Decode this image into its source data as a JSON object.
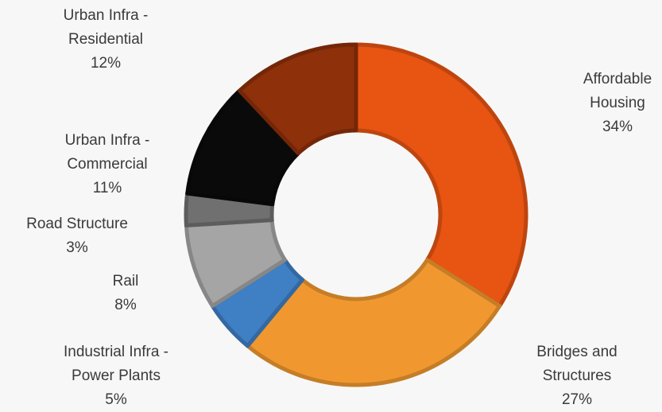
{
  "chart_data": {
    "type": "pie",
    "donut": true,
    "title": "",
    "slices": [
      {
        "label": "Affordable Housing",
        "value": 34,
        "display": "34%",
        "color": "#e85412"
      },
      {
        "label": "Bridges and Structures",
        "value": 27,
        "display": "27%",
        "color": "#f0982f"
      },
      {
        "label": "Industrial Infra - Power Plants",
        "value": 5,
        "display": "5%",
        "color": "#3f7fc4"
      },
      {
        "label": "Rail",
        "value": 8,
        "display": "8%",
        "color": "#a5a5a5"
      },
      {
        "label": "Road Structure",
        "value": 3,
        "display": "3%",
        "color": "#707070"
      },
      {
        "label": "Urban Infra - Commercial",
        "value": 11,
        "display": "11%",
        "color": "#0a0a0a"
      },
      {
        "label": "Urban Infra - Residential",
        "value": 12,
        "display": "12%",
        "color": "#8e300a"
      }
    ],
    "labels": [
      {
        "lines": [
          "Affordable",
          "Housing"
        ],
        "pct": "34%"
      },
      {
        "lines": [
          "Bridges and",
          "Structures"
        ],
        "pct": "27%"
      },
      {
        "lines": [
          "Industrial Infra -",
          "Power Plants"
        ],
        "pct": "5%"
      },
      {
        "lines": [
          "Rail"
        ],
        "pct": "8%"
      },
      {
        "lines": [
          "Road Structure"
        ],
        "pct": "3%"
      },
      {
        "lines": [
          "Urban Infra -",
          "Commercial"
        ],
        "pct": "11%"
      },
      {
        "lines": [
          "Urban Infra -",
          "Residential"
        ],
        "pct": "12%"
      }
    ],
    "legend": "none"
  }
}
